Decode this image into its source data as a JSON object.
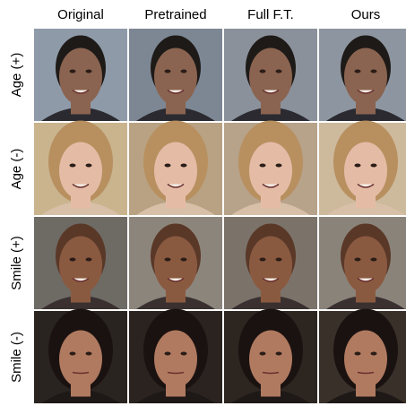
{
  "header": {
    "columns": [
      "Original",
      "Pretrained",
      "Full F.T.",
      "Ours"
    ]
  },
  "rows": [
    "Age (+)",
    "Age (-)",
    "Smile (+)",
    "Smile (-)"
  ]
}
